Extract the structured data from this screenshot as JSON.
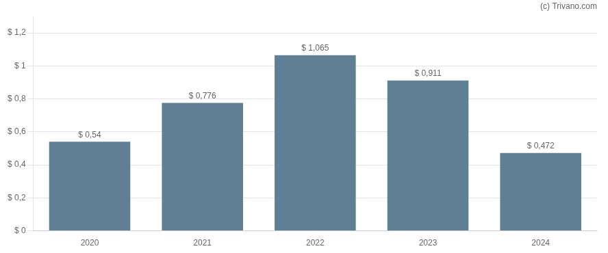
{
  "chart_data": {
    "type": "bar",
    "categories": [
      "2020",
      "2021",
      "2022",
      "2023",
      "2024"
    ],
    "values": [
      0.54,
      0.776,
      1.065,
      0.911,
      0.472
    ],
    "value_labels": [
      "$ 0,54",
      "$ 0,776",
      "$ 1,065",
      "$ 0,911",
      "$ 0,472"
    ],
    "data_labels": true,
    "color": "#5f7f94",
    "ylim": [
      0,
      1.3
    ],
    "yticks": [
      {
        "value": 0,
        "label": "$ 0"
      },
      {
        "value": 0.2,
        "label": "$ 0,2"
      },
      {
        "value": 0.4,
        "label": "$ 0,4"
      },
      {
        "value": 0.6,
        "label": "$ 0,6"
      },
      {
        "value": 0.8,
        "label": "$ 0,8"
      },
      {
        "value": 1.0,
        "label": "$ 1"
      },
      {
        "value": 1.2,
        "label": "$ 1,2"
      }
    ],
    "grid": true,
    "annotations": [
      "(c) Trivano.com"
    ]
  }
}
